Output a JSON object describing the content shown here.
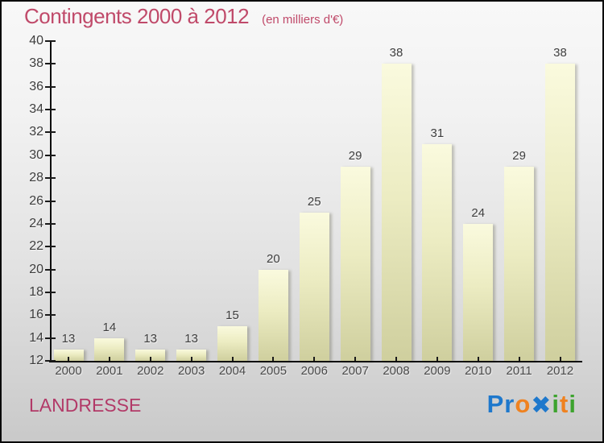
{
  "header": {
    "title": "Contingents 2000 à 2012",
    "subtitle": "(en milliers d'€)",
    "title_color": "#c04a6a"
  },
  "chart_data": {
    "type": "bar",
    "categories": [
      "2000",
      "2001",
      "2002",
      "2003",
      "2004",
      "2005",
      "2006",
      "2007",
      "2008",
      "2009",
      "2010",
      "2011",
      "2012"
    ],
    "values": [
      13,
      14,
      13,
      13,
      15,
      20,
      25,
      29,
      38,
      31,
      24,
      29,
      38
    ],
    "title": "Contingents 2000 à 2012",
    "subtitle": "(en milliers d'€)",
    "xlabel": "",
    "ylabel": "",
    "ylim": [
      12,
      40
    ],
    "ytick_step": 2,
    "grid": false,
    "legend": null,
    "value_labels_shown": true,
    "bar_color_top": "#fafade",
    "bar_color_bottom": "#cfcf9e",
    "axis_color": "#0d0d0d",
    "label_color": "#3e3e3e"
  },
  "footer": {
    "place_name": "LANDRESSE",
    "place_color": "#b23a68",
    "logo": {
      "name": "Proxiti",
      "letters": [
        {
          "ch": "P",
          "color": "#1e78cc"
        },
        {
          "ch": "r",
          "color": "#1e78cc"
        },
        {
          "ch": "o",
          "color": "#ef8220"
        },
        {
          "ch": "✖",
          "color": "#1e78cc"
        },
        {
          "ch": "i",
          "color": "#3da32e"
        },
        {
          "ch": "t",
          "color": "#ef8220"
        },
        {
          "ch": "i",
          "color": "#3da32e"
        }
      ]
    }
  }
}
